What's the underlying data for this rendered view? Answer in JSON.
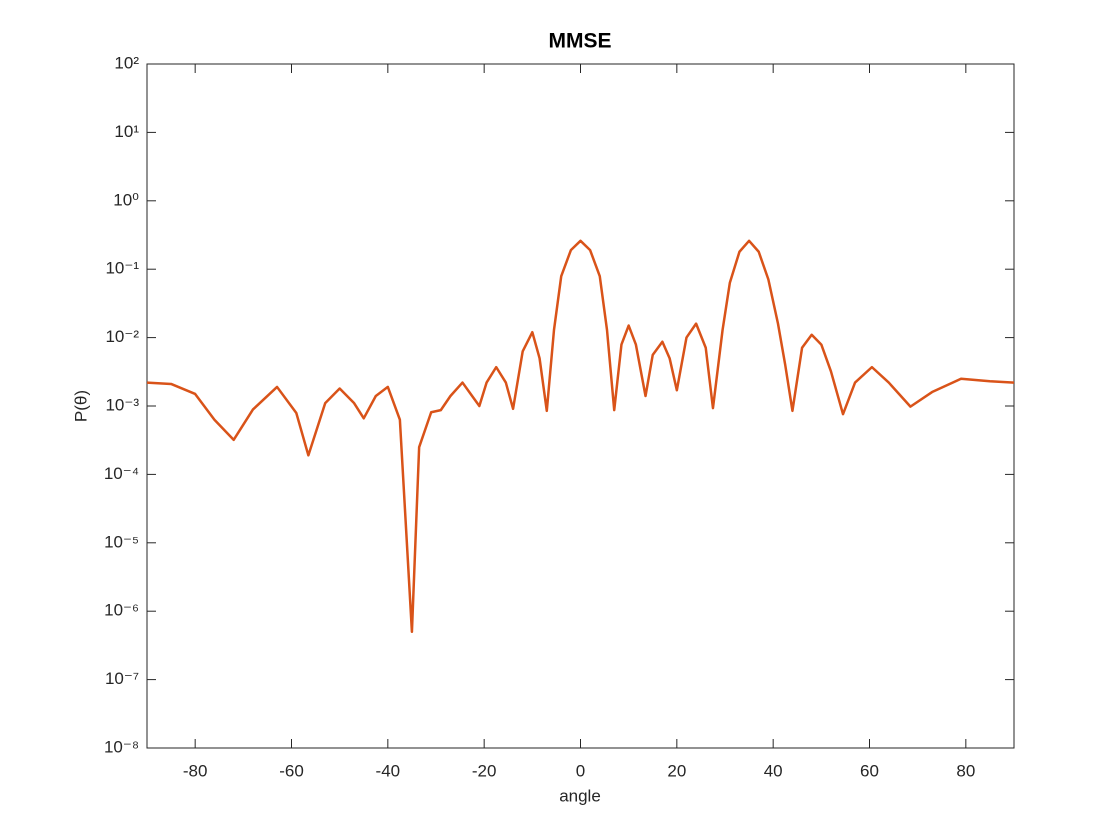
{
  "chart_data": {
    "type": "line",
    "title": "MMSE",
    "x_label": "angle",
    "y_label": "P(θ)",
    "log_y": true,
    "grid": false,
    "box": true,
    "xlim": [
      -90,
      90
    ],
    "xticks": [
      -80,
      -60,
      -40,
      -20,
      0,
      20,
      40,
      60,
      80
    ],
    "ylim": [
      1e-08,
      100
    ],
    "yticks": [
      {
        "value": 1e-08,
        "label": "10⁻⁸"
      },
      {
        "value": 1e-07,
        "label": "10⁻⁷"
      },
      {
        "value": 1e-06,
        "label": "10⁻⁶"
      },
      {
        "value": 1e-05,
        "label": "10⁻⁵"
      },
      {
        "value": 0.0001,
        "label": "10⁻⁴"
      },
      {
        "value": 0.001,
        "label": "10⁻³"
      },
      {
        "value": 0.01,
        "label": "10⁻²"
      },
      {
        "value": 0.1,
        "label": "10⁻¹"
      },
      {
        "value": 1,
        "label": "10⁰"
      },
      {
        "value": 10,
        "label": "10¹"
      },
      {
        "value": 100,
        "label": "10²"
      }
    ],
    "x": [
      -90,
      -85,
      -80,
      -76,
      -72,
      -68,
      -63,
      -59,
      -56.5,
      -53,
      -50,
      -47,
      -45,
      -42.5,
      -40,
      -37.5,
      -35,
      -33.5,
      -31,
      -29,
      -27,
      -24.5,
      -22.5,
      -21,
      -19.5,
      -17.5,
      -15.5,
      -14,
      -12,
      -10,
      -8.5,
      -7,
      -5.5,
      -4,
      -2,
      0,
      2,
      4,
      5.5,
      7,
      8.5,
      10,
      11.5,
      13.5,
      15,
      17,
      18.5,
      20,
      22,
      24,
      26,
      27.5,
      29.5,
      31,
      33,
      35,
      37,
      39,
      41,
      42.5,
      44,
      46,
      48,
      50,
      52,
      54.5,
      57,
      60.5,
      64,
      68.5,
      73,
      79,
      85,
      90
    ],
    "series": [
      {
        "color": "#D95319",
        "values": [
          0.0022,
          0.0021,
          0.0015,
          0.00063,
          0.00032,
          0.00089,
          0.0019,
          0.00079,
          0.00019,
          0.0011,
          0.0018,
          0.0011,
          0.00066,
          0.0014,
          0.0019,
          0.00063,
          5e-07,
          0.00025,
          0.00081,
          0.00087,
          0.0014,
          0.0022,
          0.0014,
          0.001,
          0.0022,
          0.0037,
          0.0022,
          0.00091,
          0.0063,
          0.012,
          0.005,
          0.00085,
          0.013,
          0.079,
          0.19,
          0.26,
          0.19,
          0.079,
          0.013,
          0.00087,
          0.0079,
          0.015,
          0.0079,
          0.0014,
          0.0056,
          0.0087,
          0.005,
          0.0017,
          0.01,
          0.016,
          0.0071,
          0.00093,
          0.013,
          0.063,
          0.18,
          0.26,
          0.18,
          0.071,
          0.016,
          0.004,
          0.00085,
          0.0071,
          0.011,
          0.0079,
          0.0032,
          0.00076,
          0.0022,
          0.0037,
          0.0022,
          0.00098,
          0.0016,
          0.0025,
          0.0023,
          0.0022
        ]
      }
    ]
  }
}
